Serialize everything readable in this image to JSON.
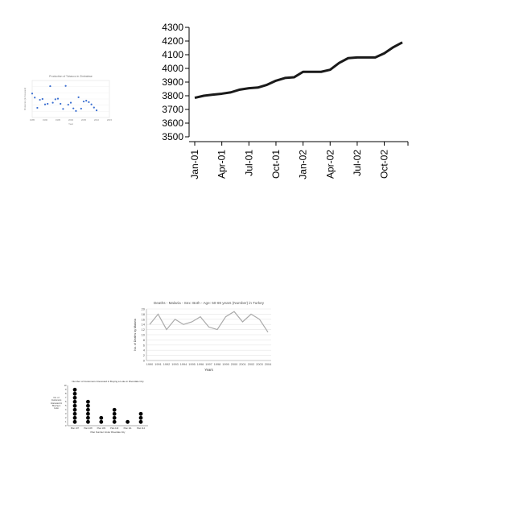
{
  "chart_data": [
    {
      "type": "line",
      "x": [
        "Jan-01",
        "Feb-01",
        "Mar-01",
        "Apr-01",
        "May-01",
        "Jun-01",
        "Jul-01",
        "Aug-01",
        "Sep-01",
        "Oct-01",
        "Nov-01",
        "Dec-01",
        "Jan-02",
        "Feb-02",
        "Mar-02",
        "Apr-02",
        "May-02",
        "Jun-02",
        "Jul-02",
        "Aug-02",
        "Sep-02",
        "Oct-02",
        "Nov-02",
        "Dec-02"
      ],
      "values": [
        3785,
        3800,
        3808,
        3815,
        3825,
        3845,
        3855,
        3860,
        3880,
        3910,
        3930,
        3935,
        3975,
        3975,
        3975,
        3990,
        4040,
        4075,
        4080,
        4080,
        4080,
        4110,
        4155,
        4190
      ],
      "x_tick_labels": [
        "Jan-01",
        "Apr-01",
        "Jul-01",
        "Oct-01",
        "Jan-02",
        "Apr-02",
        "Jul-02",
        "Oct-02"
      ],
      "y_ticks": [
        3500,
        3600,
        3700,
        3800,
        3900,
        4000,
        4100,
        4200,
        4300
      ],
      "ylim": [
        3500,
        4300
      ],
      "color": "#1a1a1a",
      "grid": false
    },
    {
      "type": "scatter",
      "title": "Production of Tobacco in Zimbabwe",
      "xlabel": "Year",
      "ylabel": "Production (in thousand)",
      "x_ticks": [
        1985,
        1990,
        1995,
        2000,
        2005,
        2010,
        2015
      ],
      "x": [
        1985,
        1986,
        1987,
        1988,
        1989,
        1990,
        1991,
        1992,
        1993,
        1994,
        1995,
        1996,
        1997,
        1998,
        1999,
        2000,
        2001,
        2002,
        2003,
        2004,
        2005,
        2006,
        2007,
        2008,
        2009,
        2010
      ],
      "values": [
        0.84,
        0.7,
        0.34,
        0.62,
        0.65,
        0.46,
        0.48,
        1.1,
        0.52,
        0.64,
        0.66,
        0.48,
        0.3,
        1.11,
        0.45,
        0.52,
        0.32,
        0.23,
        0.71,
        0.31,
        0.56,
        0.59,
        0.54,
        0.46,
        0.35,
        0.25
      ],
      "ylim": [
        0,
        1.3
      ],
      "color": "#3b6fd1"
    },
    {
      "type": "line",
      "title": "Deaths - Malaria - Sex: Both - Age: 50-69 years (Number) in Turkey",
      "xlabel": "Years",
      "ylabel": "No. of Deaths by Malaria",
      "categories": [
        "1990",
        "1991",
        "1992",
        "1993",
        "1994",
        "1995",
        "1996",
        "1997",
        "1998",
        "1999",
        "2000",
        "2001",
        "2002",
        "2003",
        "2004"
      ],
      "values": [
        14,
        18,
        12,
        16,
        14,
        15,
        17,
        13,
        12,
        17,
        19,
        15,
        18,
        16,
        11
      ],
      "y_ticks": [
        "0",
        "2",
        "4",
        "6",
        "8",
        "10",
        "12",
        "14",
        "16",
        "18",
        "20"
      ],
      "ylim": [
        0,
        20
      ],
      "color": "#aaaaaa",
      "grid": true
    },
    {
      "type": "scatter",
      "title": "Number of Customers Interested in Buying a Luke in Riverdale City",
      "xlabel": "Plan Number Under Riverdale City",
      "ylabel": "No. of Customers Interested in Buying a Luke",
      "categories": [
        "Plan 107",
        "Plan 108",
        "Plan 109",
        "Plan 110",
        "Plan 111",
        "Plan 112"
      ],
      "values": [
        9,
        6,
        2,
        4,
        1,
        3
      ],
      "y_ticks": [
        "0",
        "1",
        "2",
        "3",
        "4",
        "5",
        "6",
        "7",
        "8",
        "9",
        "10"
      ],
      "ylim": [
        0,
        10
      ],
      "color": "#000000"
    }
  ]
}
